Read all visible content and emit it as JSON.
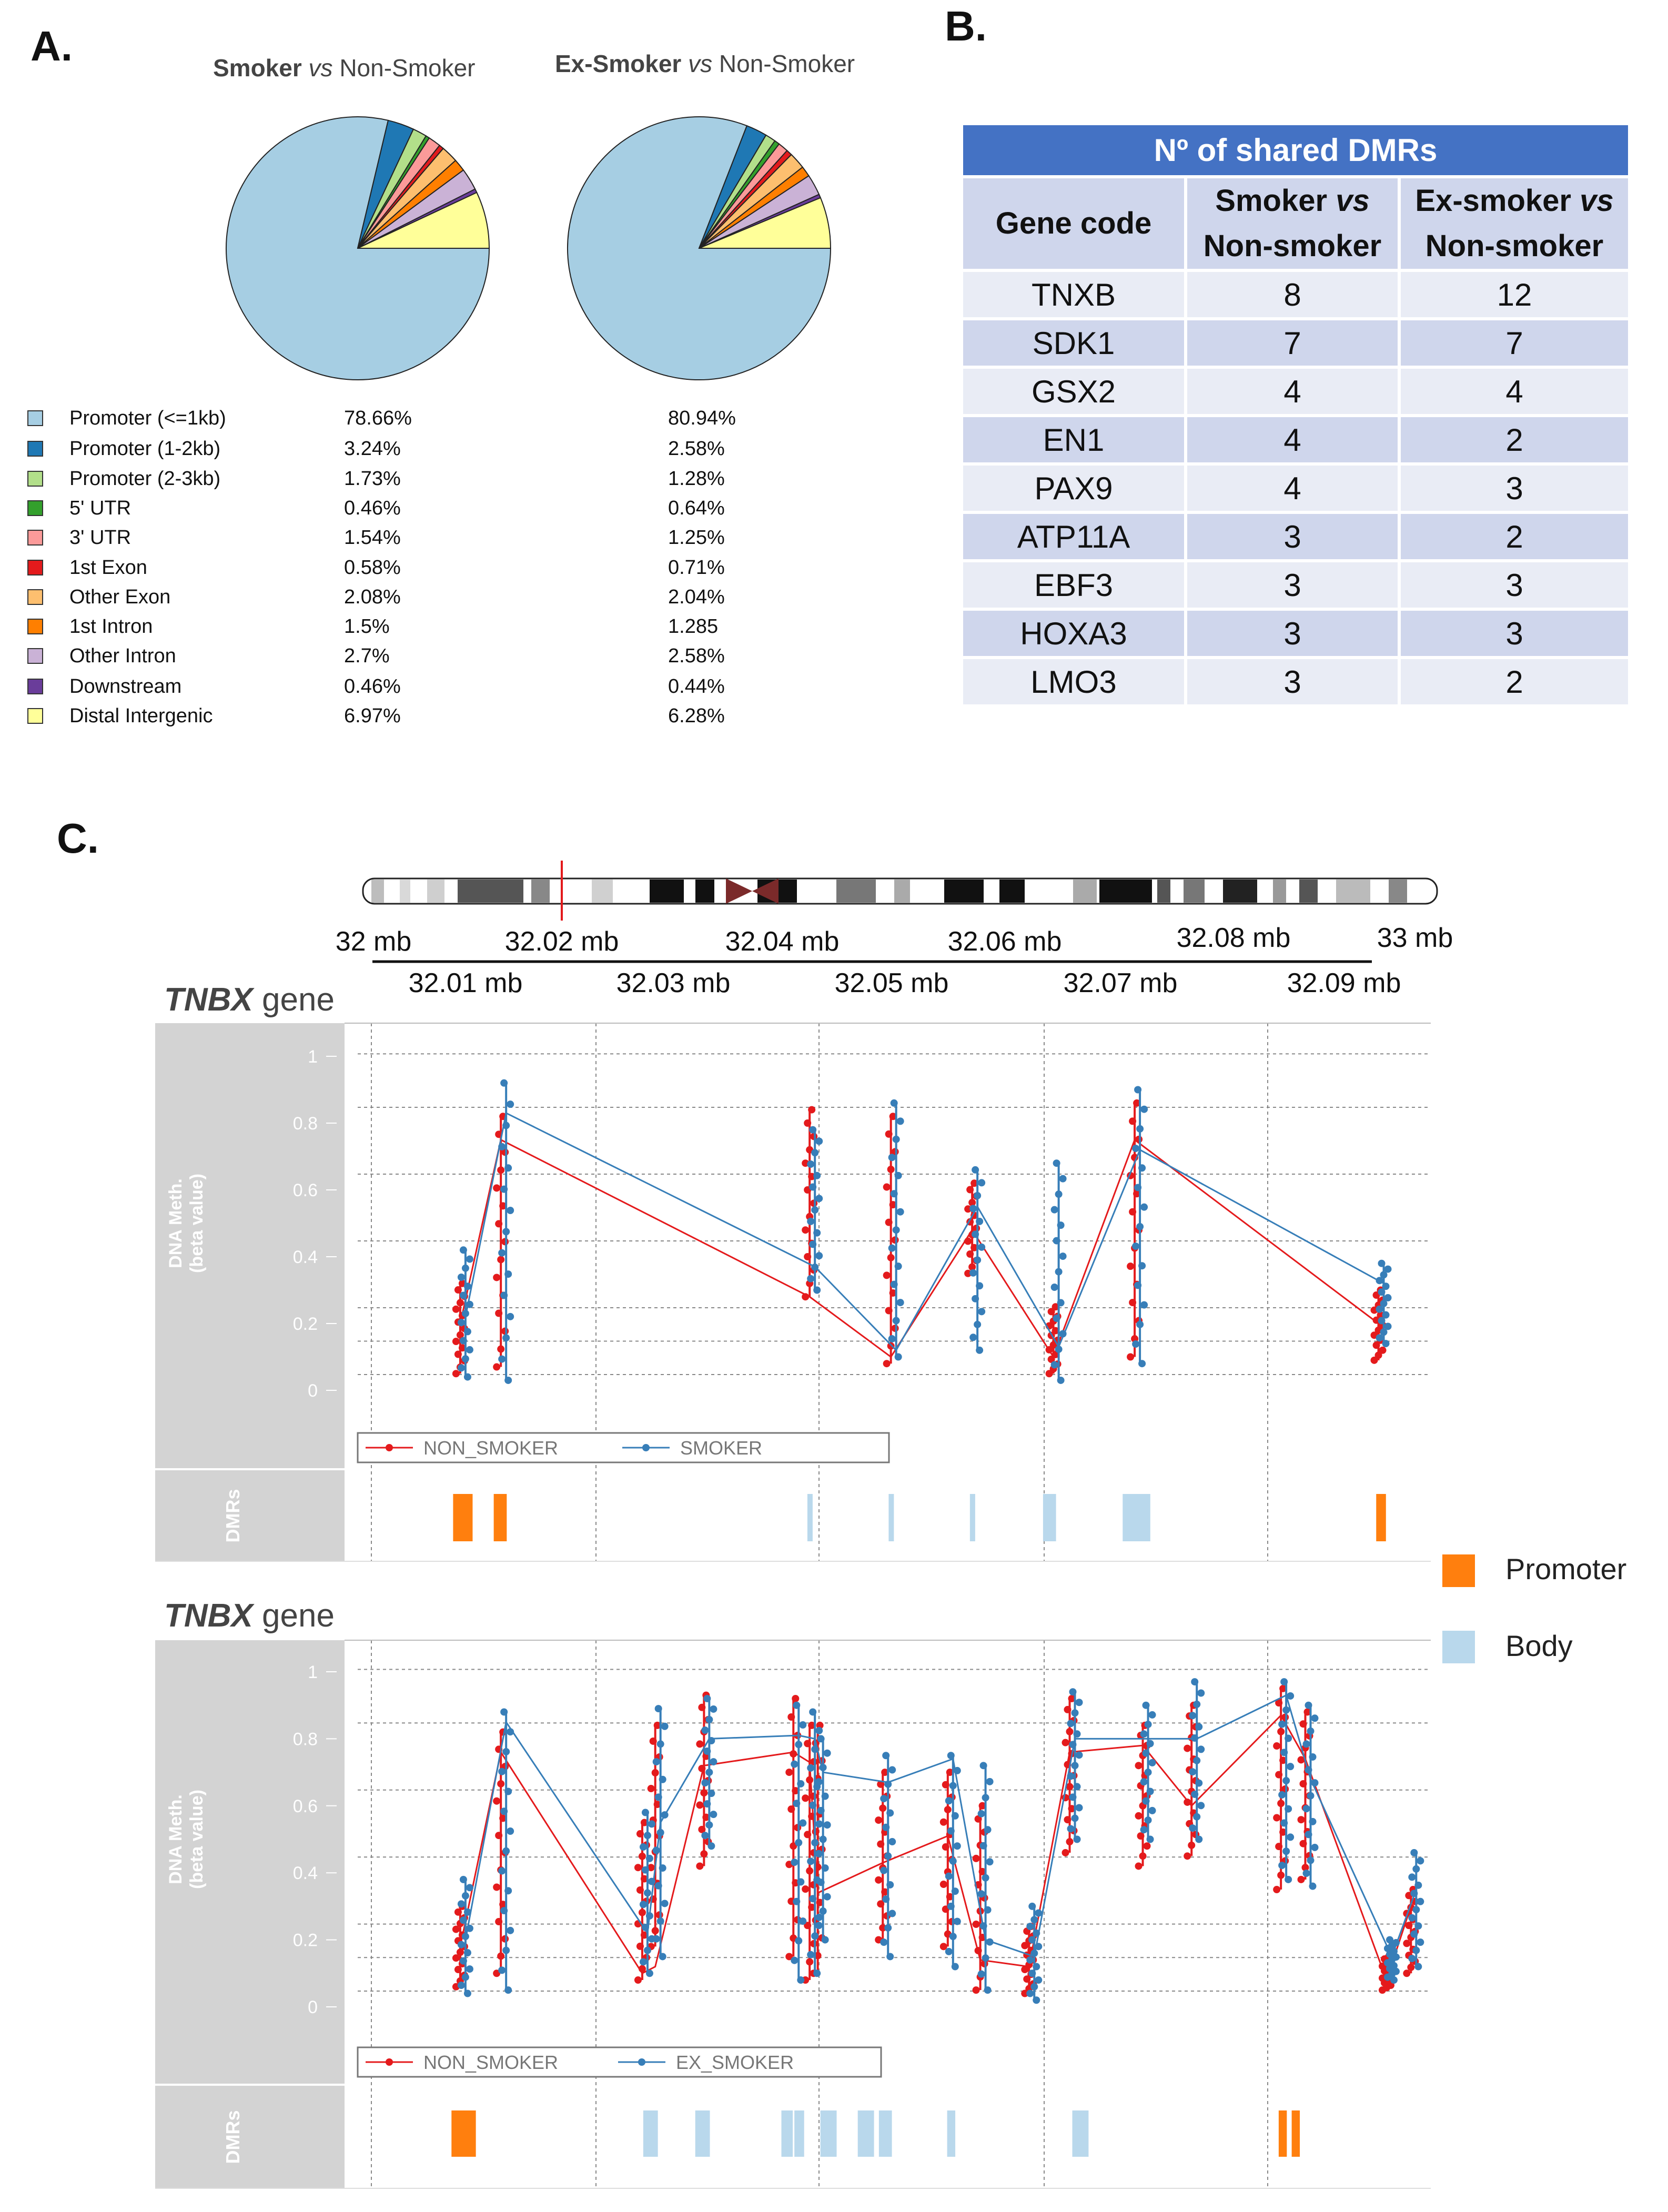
{
  "panels": {
    "a": "A.",
    "b": "B.",
    "c": "C."
  },
  "pie_titles": [
    {
      "bold": "Smoker",
      "vs": "vs",
      "rest": "Non-Smoker"
    },
    {
      "bold": "Ex-Smoker",
      "vs": "vs",
      "rest": "Non-Smoker"
    }
  ],
  "pie_legend": [
    {
      "label": "Promoter (<=1kb)",
      "color": "#a6cee3",
      "smoker": "78.66%",
      "ex_smoker": "80.94%"
    },
    {
      "label": "Promoter (1-2kb)",
      "color": "#1f78b4",
      "smoker": "3.24%",
      "ex_smoker": "2.58%"
    },
    {
      "label": "Promoter (2-3kb)",
      "color": "#b2df8a",
      "smoker": "1.73%",
      "ex_smoker": "1.28%"
    },
    {
      "label": "5' UTR",
      "color": "#33a02c",
      "smoker": "0.46%",
      "ex_smoker": "0.64%"
    },
    {
      "label": "3' UTR",
      "color": "#fb9a99",
      "smoker": "1.54%",
      "ex_smoker": "1.25%"
    },
    {
      "label": "1st Exon",
      "color": "#e31a1c",
      "smoker": "0.58%",
      "ex_smoker": "0.71%"
    },
    {
      "label": "Other Exon",
      "color": "#fdbf6f",
      "smoker": "2.08%",
      "ex_smoker": "2.04%"
    },
    {
      "label": "1st Intron",
      "color": "#ff7f00",
      "smoker": "1.5%",
      "ex_smoker": "1.285"
    },
    {
      "label": "Other Intron",
      "color": "#cab2d6",
      "smoker": "2.7%",
      "ex_smoker": "2.58%"
    },
    {
      "label": "Downstream",
      "color": "#6a3d9a",
      "smoker": "0.46%",
      "ex_smoker": "0.44%"
    },
    {
      "label": "Distal Intergenic",
      "color": "#ffff99",
      "smoker": "6.97%",
      "ex_smoker": "6.28%"
    }
  ],
  "table": {
    "title": "Nº of shared DMRs",
    "col_gene": "Gene code",
    "col_smoker": [
      "Smoker ",
      "vs",
      "Non-smoker"
    ],
    "col_ex": [
      "Ex-smoker ",
      "vs",
      "Non-smoker"
    ],
    "rows": [
      [
        "TNXB",
        "8",
        "12"
      ],
      [
        "SDK1",
        "7",
        "7"
      ],
      [
        "GSX2",
        "4",
        "4"
      ],
      [
        "EN1",
        "4",
        "2"
      ],
      [
        "PAX9",
        "4",
        "3"
      ],
      [
        "ATP11A",
        "3",
        "2"
      ],
      [
        "EBF3",
        "3",
        "3"
      ],
      [
        "HOXA3",
        "3",
        "3"
      ],
      [
        "LMO3",
        "3",
        "2"
      ]
    ]
  },
  "ideogram": {
    "top_labels": [
      "32 mb",
      "32.02 mb",
      "32.04 mb",
      "32.06 mb",
      "32.08 mb",
      "33 mb"
    ],
    "bottom_labels": [
      "32.01 mb",
      "32.03 mb",
      "32.05 mb",
      "32.07 mb",
      "32.09 mb"
    ]
  },
  "gene_titles": [
    {
      "gene": "TNBX",
      "suffix": " gene"
    },
    {
      "gene": "TNBX",
      "suffix": " gene"
    }
  ],
  "axis": {
    "ylabel1": "DNA Meth.",
    "ylabel2": "(beta value)",
    "dmr_label": "DMRs",
    "yticks": [
      "0",
      "0.2",
      "0.4",
      "0.6",
      "0.8",
      "1"
    ]
  },
  "region_legend": {
    "promoter": "Promoter",
    "body": "Body",
    "promoter_color": "#ff7f0e",
    "body_color": "#b9d8ec"
  },
  "chart_data": [
    {
      "type": "line",
      "title": "Smoker vs Non-Smoker — TNBX gene",
      "ylabel": "DNA Meth. (beta value)",
      "ylim": [
        0,
        1
      ],
      "x": [
        32.016,
        32.0185,
        32.0375,
        32.0425,
        32.0475,
        32.0525,
        32.0575,
        32.0725
      ],
      "series": [
        {
          "name": "NON_SMOKER",
          "color": "#e41a1c",
          "values": [
            0.2,
            0.75,
            0.28,
            0.1,
            0.48,
            0.1,
            0.75,
            0.2
          ],
          "clusters": [
            [
              32.016,
              0.05,
              0.32
            ],
            [
              32.0185,
              0.07,
              0.82
            ],
            [
              32.0375,
              0.28,
              0.84
            ],
            [
              32.0425,
              0.08,
              0.82
            ],
            [
              32.0475,
              0.35,
              0.62
            ],
            [
              32.0525,
              0.05,
              0.25
            ],
            [
              32.0575,
              0.1,
              0.86
            ],
            [
              32.0725,
              0.09,
              0.3
            ]
          ]
        },
        {
          "name": "SMOKER",
          "color": "#377eb8",
          "values": [
            0.22,
            0.83,
            0.37,
            0.12,
            0.55,
            0.13,
            0.72,
            0.32
          ],
          "clusters": [
            [
              32.016,
              0.04,
              0.42
            ],
            [
              32.0185,
              0.03,
              0.92
            ],
            [
              32.0375,
              0.3,
              0.78
            ],
            [
              32.0425,
              0.1,
              0.86
            ],
            [
              32.0475,
              0.12,
              0.66
            ],
            [
              32.0525,
              0.03,
              0.68
            ],
            [
              32.0575,
              0.08,
              0.9
            ],
            [
              32.0725,
              0.14,
              0.38
            ]
          ]
        }
      ],
      "dmrs": [
        {
          "start": 32.0154,
          "end": 32.0166,
          "type": "Promoter"
        },
        {
          "start": 32.0179,
          "end": 32.0187,
          "type": "Promoter"
        },
        {
          "start": 32.0372,
          "end": 32.0375,
          "type": "Body"
        },
        {
          "start": 32.0422,
          "end": 32.0425,
          "type": "Body"
        },
        {
          "start": 32.0472,
          "end": 32.0475,
          "type": "Body"
        },
        {
          "start": 32.0517,
          "end": 32.0525,
          "type": "Body"
        },
        {
          "start": 32.0566,
          "end": 32.0583,
          "type": "Body"
        },
        {
          "start": 32.0722,
          "end": 32.0728,
          "type": "Promoter"
        }
      ]
    },
    {
      "type": "line",
      "title": "Ex-Smoker vs Non-Smoker — TNBX gene",
      "ylabel": "DNA Meth. (beta value)",
      "ylim": [
        0,
        1
      ],
      "x": [
        32.016,
        32.0185,
        32.0272,
        32.028,
        32.031,
        32.0365,
        32.0375,
        32.038,
        32.042,
        32.046,
        32.048,
        32.051,
        32.0535,
        32.058,
        32.061,
        32.0665,
        32.068,
        32.073,
        32.0745
      ],
      "series": [
        {
          "name": "NON_SMOKER",
          "color": "#e41a1c",
          "values": [
            0.18,
            0.76,
            0.1,
            0.12,
            0.72,
            0.76,
            0.73,
            0.34,
            0.43,
            0.51,
            0.14,
            0.12,
            0.76,
            0.78,
            0.6,
            0.87,
            0.74,
            0.08,
            0.3
          ],
          "clusters": [
            [
              32.016,
              0.06,
              0.3
            ],
            [
              32.0185,
              0.1,
              0.82
            ],
            [
              32.0272,
              0.08,
              0.55
            ],
            [
              32.028,
              0.18,
              0.84
            ],
            [
              32.031,
              0.42,
              0.93
            ],
            [
              32.0365,
              0.15,
              0.92
            ],
            [
              32.0375,
              0.08,
              0.84
            ],
            [
              32.038,
              0.1,
              0.84
            ],
            [
              32.042,
              0.2,
              0.7
            ],
            [
              32.046,
              0.18,
              0.7
            ],
            [
              32.048,
              0.05,
              0.6
            ],
            [
              32.051,
              0.04,
              0.24
            ],
            [
              32.0535,
              0.46,
              0.92
            ],
            [
              32.058,
              0.42,
              0.84
            ],
            [
              32.061,
              0.45,
              0.9
            ],
            [
              32.0665,
              0.35,
              0.95
            ],
            [
              32.068,
              0.38,
              0.88
            ],
            [
              32.073,
              0.05,
              0.15
            ],
            [
              32.0745,
              0.1,
              0.35
            ]
          ]
        },
        {
          "name": "EX_SMOKER",
          "color": "#377eb8",
          "values": [
            0.2,
            0.85,
            0.22,
            0.55,
            0.8,
            0.81,
            0.8,
            0.7,
            0.67,
            0.74,
            0.2,
            0.15,
            0.8,
            0.8,
            0.8,
            0.93,
            0.68,
            0.15,
            0.35
          ],
          "clusters": [
            [
              32.016,
              0.04,
              0.38
            ],
            [
              32.0185,
              0.05,
              0.88
            ],
            [
              32.0272,
              0.1,
              0.58
            ],
            [
              32.028,
              0.15,
              0.89
            ],
            [
              32.031,
              0.48,
              0.92
            ],
            [
              32.0365,
              0.08,
              0.9
            ],
            [
              32.0375,
              0.1,
              0.88
            ],
            [
              32.038,
              0.2,
              0.8
            ],
            [
              32.042,
              0.15,
              0.75
            ],
            [
              32.046,
              0.12,
              0.75
            ],
            [
              32.048,
              0.05,
              0.72
            ],
            [
              32.051,
              0.02,
              0.3
            ],
            [
              32.0535,
              0.5,
              0.94
            ],
            [
              32.058,
              0.5,
              0.9
            ],
            [
              32.061,
              0.5,
              0.97
            ],
            [
              32.0665,
              0.38,
              0.97
            ],
            [
              32.068,
              0.36,
              0.9
            ],
            [
              32.073,
              0.08,
              0.2
            ],
            [
              32.0745,
              0.12,
              0.46
            ]
          ]
        }
      ],
      "dmrs": [
        {
          "start": 32.0153,
          "end": 32.0168,
          "type": "Promoter"
        },
        {
          "start": 32.0271,
          "end": 32.028,
          "type": "Body"
        },
        {
          "start": 32.0303,
          "end": 32.0312,
          "type": "Body"
        },
        {
          "start": 32.0356,
          "end": 32.0363,
          "type": "Body"
        },
        {
          "start": 32.0364,
          "end": 32.037,
          "type": "Body"
        },
        {
          "start": 32.038,
          "end": 32.039,
          "type": "Body"
        },
        {
          "start": 32.0403,
          "end": 32.0413,
          "type": "Body"
        },
        {
          "start": 32.0416,
          "end": 32.0424,
          "type": "Body"
        },
        {
          "start": 32.0458,
          "end": 32.0463,
          "type": "Body"
        },
        {
          "start": 32.0535,
          "end": 32.0545,
          "type": "Body"
        },
        {
          "start": 32.0662,
          "end": 32.0667,
          "type": "Promoter"
        },
        {
          "start": 32.067,
          "end": 32.0675,
          "type": "Promoter"
        }
      ]
    },
    {
      "type": "pie",
      "title": "Smoker vs Non-Smoker",
      "categories": [
        "Promoter (<=1kb)",
        "Promoter (1-2kb)",
        "Promoter (2-3kb)",
        "5' UTR",
        "3' UTR",
        "1st Exon",
        "Other Exon",
        "1st Intron",
        "Other Intron",
        "Downstream",
        "Distal Intergenic"
      ],
      "values": [
        78.66,
        3.24,
        1.73,
        0.46,
        1.54,
        0.58,
        2.08,
        1.5,
        2.7,
        0.46,
        6.97
      ]
    },
    {
      "type": "pie",
      "title": "Ex-Smoker vs Non-Smoker",
      "categories": [
        "Promoter (<=1kb)",
        "Promoter (1-2kb)",
        "Promoter (2-3kb)",
        "5' UTR",
        "3' UTR",
        "1st Exon",
        "Other Exon",
        "1st Intron",
        "Other Intron",
        "Downstream",
        "Distal Intergenic"
      ],
      "values": [
        80.94,
        2.58,
        1.28,
        0.64,
        1.25,
        0.71,
        2.04,
        1.285,
        2.58,
        0.44,
        6.28
      ]
    }
  ]
}
